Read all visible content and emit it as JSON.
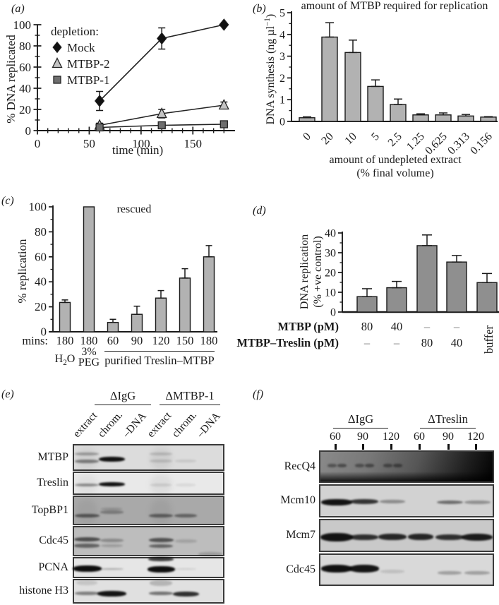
{
  "panel_a": {
    "label": "(a)",
    "xlabel": "time (min)",
    "ylabel": "% DNA replicated"
  },
  "panel_b": {
    "label": "(b)",
    "title": "amount of MTBP required for replication",
    "ylabel_pre": "DNA synthesis (ng µl",
    "ylabel_sup": "−1",
    "ylabel_post": ")",
    "xlabel_line1": "amount of undepleted extract",
    "xlabel_line2": "(% final volume)"
  },
  "panel_c": {
    "label": "(c)",
    "ylabel": "% replication",
    "annotation": "rescued",
    "group1_pre": "H",
    "group1_sub": "2",
    "group1_post": "O",
    "group2_line1": "3%",
    "group2_line2": "PEG",
    "group3": "purified Treslin–MTBP"
  },
  "panel_d": {
    "label": "(d)",
    "ylabel_line1": "DNA replication",
    "ylabel_line2": "(% +ve control)"
  },
  "chart_data": [
    {
      "id": "a",
      "type": "line",
      "x": [
        60,
        120,
        180
      ],
      "series": [
        {
          "name": "Mock",
          "marker": "diamond",
          "color": "#111111",
          "stroke": "#222222",
          "values": [
            28,
            87,
            100
          ],
          "errors": [
            9,
            10,
            0
          ]
        },
        {
          "name": "MTBP-2",
          "marker": "triangle",
          "color": "#c4c4c4",
          "stroke": "#222222",
          "values": [
            5,
            16,
            24
          ],
          "errors": [
            2,
            4,
            3
          ]
        },
        {
          "name": "MTBP-1",
          "marker": "square",
          "color": "#6e6e6e",
          "stroke": "#222222",
          "values": [
            3,
            5,
            6
          ],
          "errors": [
            1.5,
            1.5,
            1.5
          ]
        }
      ],
      "legend_title": "depletion:",
      "legend_position": "top-left",
      "xlabel": "time (min)",
      "ylabel": "% DNA replicated",
      "xlim": [
        0,
        190
      ],
      "ylim": [
        0,
        100
      ],
      "xticks": [
        0,
        50,
        100,
        150
      ],
      "yticks": [
        0,
        20,
        40,
        60,
        80,
        100
      ]
    },
    {
      "id": "b",
      "type": "bar",
      "title": "amount of MTBP required for replication",
      "categories": [
        "0",
        "20",
        "10",
        "5",
        "2.5",
        "1.25",
        "0.625",
        "0.313",
        "0.156"
      ],
      "values": [
        0.17,
        3.88,
        3.17,
        1.61,
        0.78,
        0.3,
        0.3,
        0.25,
        0.2
      ],
      "errors": [
        0.04,
        0.66,
        0.57,
        0.3,
        0.25,
        0.05,
        0.09,
        0.07,
        0.02
      ],
      "xlabel": "amount of undepleted extract (% final volume)",
      "ylabel": "DNA synthesis (ng µl−1)",
      "ylim": [
        0,
        5
      ],
      "yticks": [
        0,
        1,
        2,
        3,
        4,
        5
      ],
      "bar_color": "#b2b2b2"
    },
    {
      "id": "c",
      "type": "bar",
      "annotation": "rescued",
      "row_label": "mins:",
      "categories": [
        "180",
        "180",
        "60",
        "90",
        "120",
        "150",
        "180"
      ],
      "groups": [
        "H2O",
        "3% PEG",
        "purified Treslin–MTBP"
      ],
      "values": [
        23.5,
        100,
        7.5,
        14,
        27,
        43,
        60
      ],
      "errors": [
        2,
        0,
        2.5,
        6.5,
        6,
        7.5,
        9
      ],
      "ylabel": "% replication",
      "ylim": [
        0,
        100
      ],
      "yticks": [
        0,
        20,
        40,
        60,
        80,
        100
      ],
      "bar_color": "#b2b2b2"
    },
    {
      "id": "d",
      "type": "bar",
      "values": [
        7.8,
        12.3,
        33.6,
        25.3,
        14.9
      ],
      "errors": [
        4,
        3.2,
        5.4,
        3.3,
        4.6
      ],
      "ylabel": "DNA replication (% +ve control)",
      "ylim": [
        0,
        40
      ],
      "yticks": [
        0,
        10,
        20,
        30,
        40
      ],
      "bar_color": "#8f8f8f",
      "rows": [
        {
          "label": "MTBP (pM)",
          "values": [
            "80",
            "40",
            "–",
            "–"
          ]
        },
        {
          "label": "MTBP–Treslin (pM)",
          "values": [
            "–",
            "–",
            "80",
            "40"
          ]
        }
      ],
      "rotated_label": "buffer"
    }
  ],
  "blots": {
    "e": {
      "label": "(e)",
      "group_labels": [
        "ΔIgG",
        "ΔMTBP-1"
      ],
      "lane_labels": [
        "extract",
        "chrom.",
        "–DNA",
        "extract",
        "chrom.",
        "–DNA"
      ],
      "rows": [
        {
          "name": "MTBP",
          "bg": "#dcdcdc",
          "bands": [
            {
              "lane": 0,
              "fy": 0.32,
              "w": 34,
              "h": 4,
              "o": 0.3
            },
            {
              "lane": 0,
              "fy": 0.6,
              "w": 34,
              "h": 5,
              "o": 0.45
            },
            {
              "lane": 1,
              "fy": 0.5,
              "w": 37,
              "h": 7,
              "o": 0.97
            },
            {
              "lane": 3,
              "fy": 0.32,
              "w": 32,
              "h": 4,
              "o": 0.15
            },
            {
              "lane": 3,
              "fy": 0.58,
              "w": 32,
              "h": 4,
              "o": 0.14
            },
            {
              "lane": 4,
              "fy": 0.58,
              "w": 30,
              "h": 4,
              "o": 0.1
            },
            {
              "lane": 0,
              "col": 1,
              "o": 0.05
            },
            {
              "lane": 3,
              "col": 1,
              "o": 0.06
            }
          ]
        },
        {
          "name": "Treslin",
          "bg": "#e9e9e9",
          "bands": [
            {
              "lane": 0,
              "fy": 0.52,
              "w": 34,
              "h": 4.5,
              "o": 0.4
            },
            {
              "lane": 1,
              "fy": 0.48,
              "w": 37,
              "h": 6,
              "o": 0.96
            },
            {
              "lane": 3,
              "fy": 0.5,
              "w": 30,
              "h": 4,
              "o": 0.1
            },
            {
              "lane": 4,
              "fy": 0.52,
              "w": 28,
              "h": 3.5,
              "o": 0.08
            },
            {
              "lane": 0,
              "col": 1,
              "o": 0.04
            },
            {
              "lane": 3,
              "col": 1,
              "o": 0.05
            }
          ]
        },
        {
          "name": "TopBP1",
          "bg": "#a9a9a9",
          "bands": [
            {
              "lane": 0,
              "fy": 0.62,
              "w": 35,
              "h": 5,
              "o": 0.52
            },
            {
              "lane": 1,
              "fy": 0.4,
              "w": 30,
              "h": 4,
              "o": 0.15
            },
            {
              "lane": 1,
              "fy": 0.52,
              "w": 33,
              "h": 5,
              "o": 0.3
            },
            {
              "lane": 3,
              "fy": 0.62,
              "w": 34,
              "h": 5,
              "o": 0.48
            },
            {
              "lane": 4,
              "fy": 0.62,
              "w": 32,
              "h": 5,
              "o": 0.45
            },
            {
              "lane": 0,
              "col": 1,
              "o": 0.05
            },
            {
              "lane": 3,
              "col": 1,
              "o": 0.05
            }
          ]
        },
        {
          "name": "Cdc45",
          "bg": "#bdbdbd",
          "bands": [
            {
              "lane": 0,
              "fy": 0.4,
              "w": 37,
              "h": 6.5,
              "o": 0.62
            },
            {
              "lane": 0,
              "fy": 0.6,
              "w": 36,
              "h": 5.5,
              "o": 0.5
            },
            {
              "lane": 1,
              "fy": 0.42,
              "w": 33,
              "h": 5,
              "o": 0.28
            },
            {
              "lane": 1,
              "fy": 0.6,
              "w": 31,
              "h": 4,
              "o": 0.18
            },
            {
              "lane": 3,
              "fy": 0.42,
              "w": 35,
              "h": 6.5,
              "o": 0.6
            },
            {
              "lane": 3,
              "fy": 0.62,
              "w": 34,
              "h": 5.5,
              "o": 0.5
            },
            {
              "lane": 4,
              "fy": 0.45,
              "w": 31,
              "h": 5,
              "o": 0.15
            },
            {
              "lane": 5,
              "fy": 0.88,
              "w": 34,
              "h": 6,
              "o": 0.18
            }
          ]
        },
        {
          "name": "PCNA",
          "bg": "#e6e6e6",
          "bands": [
            {
              "lane": 0,
              "fy": 0.48,
              "w": 41,
              "h": 9,
              "o": 0.98
            },
            {
              "lane": 1,
              "fy": 0.5,
              "w": 34,
              "h": 2.5,
              "o": 0.3
            },
            {
              "lane": 3,
              "fy": 0.04,
              "w": 36,
              "h": 6,
              "o": 0.75
            },
            {
              "lane": 3,
              "fy": 0.5,
              "w": 39,
              "h": 9,
              "o": 0.98
            },
            {
              "lane": 4,
              "fy": 0.5,
              "w": 30,
              "h": 2,
              "o": 0.12
            }
          ]
        },
        {
          "name": "histone H3",
          "bg": "#e0e0e0",
          "bands": [
            {
              "lane": 0,
              "fy": 0.1,
              "w": 30,
              "h": 7,
              "o": 0.12
            },
            {
              "lane": 0,
              "fy": 0.52,
              "w": 35,
              "h": 5,
              "o": 0.45
            },
            {
              "lane": 1,
              "fy": 0.55,
              "w": 41,
              "h": 8,
              "o": 0.95
            },
            {
              "lane": 3,
              "fy": 0.1,
              "w": 32,
              "h": 8,
              "o": 0.2
            },
            {
              "lane": 3,
              "fy": 0.52,
              "w": 34,
              "h": 5,
              "o": 0.5
            },
            {
              "lane": 4,
              "fy": 0.55,
              "w": 37,
              "h": 7,
              "o": 0.82
            }
          ]
        }
      ]
    },
    "f": {
      "label": "(f)",
      "group_labels": [
        "ΔIgG",
        "ΔTreslin"
      ],
      "lane_labels": [
        "60",
        "90",
        "120",
        "60",
        "90",
        "120"
      ],
      "rows": [
        {
          "name": "RecQ4",
          "gradient": true,
          "bands": [
            {
              "lane": 0,
              "dx": -7,
              "fy": 0.42,
              "w": 13,
              "h": 4.5,
              "o": 0.4
            },
            {
              "lane": 0,
              "dx": 7,
              "fy": 0.42,
              "w": 13,
              "h": 4.5,
              "o": 0.45
            },
            {
              "lane": 1,
              "dx": -7,
              "fy": 0.42,
              "w": 13,
              "h": 4.5,
              "o": 0.4
            },
            {
              "lane": 1,
              "dx": 7,
              "fy": 0.42,
              "w": 13,
              "h": 4.5,
              "o": 0.45
            },
            {
              "lane": 2,
              "dx": -7,
              "fy": 0.42,
              "w": 13,
              "h": 4.5,
              "o": 0.42
            },
            {
              "lane": 2,
              "dx": 7,
              "fy": 0.42,
              "w": 13,
              "h": 4.5,
              "o": 0.45
            }
          ]
        },
        {
          "name": "Mcm10",
          "bg": "#d2d2d2",
          "bands": [
            {
              "lane": 0,
              "fy": 0.5,
              "w": 44,
              "h": 9,
              "o": 0.95
            },
            {
              "lane": 1,
              "fy": 0.48,
              "w": 40,
              "h": 7,
              "o": 0.78
            },
            {
              "lane": 2,
              "fy": 0.48,
              "w": 36,
              "h": 5,
              "o": 0.35
            },
            {
              "lane": 4,
              "fy": 0.5,
              "w": 37,
              "h": 5.5,
              "o": 0.5
            },
            {
              "lane": 5,
              "fy": 0.5,
              "w": 37,
              "h": 5,
              "o": 0.33
            }
          ]
        },
        {
          "name": "Mcm7",
          "bg": "#c9c9c9",
          "bands": [
            {
              "lane": 0,
              "fy": 0.5,
              "w": 46,
              "h": 12,
              "o": 0.95
            },
            {
              "lane": 1,
              "fy": 0.5,
              "w": 40,
              "h": 8,
              "o": 0.8
            },
            {
              "lane": 2,
              "fy": 0.5,
              "w": 40,
              "h": 8.5,
              "o": 0.85
            },
            {
              "lane": 3,
              "fy": 0.5,
              "w": 36,
              "h": 8.5,
              "o": 0.85
            },
            {
              "lane": 4,
              "fy": 0.52,
              "w": 40,
              "h": 8,
              "o": 0.8
            },
            {
              "lane": 5,
              "fy": 0.5,
              "w": 44,
              "h": 10,
              "o": 0.9
            }
          ]
        },
        {
          "name": "Cdc45",
          "bg": "#d9d9d9",
          "bands": [
            {
              "lane": 0,
              "fy": 0.42,
              "w": 44,
              "h": 11,
              "o": 0.96
            },
            {
              "lane": 1,
              "fy": 0.42,
              "w": 42,
              "h": 11,
              "o": 0.94
            },
            {
              "lane": 2,
              "fy": 0.5,
              "w": 34,
              "h": 5,
              "o": 0.12
            },
            {
              "lane": 4,
              "fy": 0.55,
              "w": 34,
              "h": 5,
              "o": 0.28
            },
            {
              "lane": 5,
              "fy": 0.55,
              "w": 36,
              "h": 5,
              "o": 0.28
            }
          ]
        }
      ]
    }
  }
}
